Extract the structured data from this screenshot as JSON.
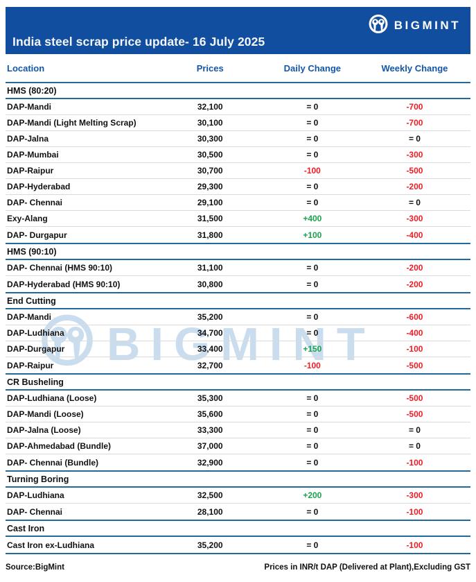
{
  "header": {
    "brand": "BIGMINT",
    "title": "India steel scrap price update- 16 July 2025"
  },
  "watermark": {
    "text": "BIGMINT"
  },
  "footer": {
    "source": "Source:BigMint",
    "note": "Prices in INR/t DAP (Delivered at Plant),Excluding GST"
  },
  "colors": {
    "banner_blue": "#114E9F",
    "header_text_blue": "#1456A8",
    "divider_blue": "#1F6A9B",
    "down_red": "#EE1C25",
    "up_green": "#1CA24D",
    "watermark_blue": "#9FC2E2"
  },
  "chart_data": {
    "type": "table",
    "title": "India steel scrap price update- 16 July 2025",
    "units_note": "Prices in INR/t DAP (Delivered at Plant),Excluding GST",
    "columns": [
      "Location",
      "Prices",
      "Daily Change",
      "Weekly Change"
    ],
    "sections": [
      {
        "name": "HMS (80:20)",
        "rows": [
          {
            "location": "DAP-Mandi",
            "price": "32,100",
            "daily": "= 0",
            "daily_dir": "flat",
            "weekly": "-700",
            "weekly_dir": "down"
          },
          {
            "location": "DAP-Mandi (Light Melting Scrap)",
            "price": "30,100",
            "daily": "= 0",
            "daily_dir": "flat",
            "weekly": "-700",
            "weekly_dir": "down"
          },
          {
            "location": "DAP-Jalna",
            "price": "30,300",
            "daily": "= 0",
            "daily_dir": "flat",
            "weekly": "= 0",
            "weekly_dir": "flat"
          },
          {
            "location": "DAP-Mumbai",
            "price": "30,500",
            "daily": "= 0",
            "daily_dir": "flat",
            "weekly": "-300",
            "weekly_dir": "down"
          },
          {
            "location": "DAP-Raipur",
            "price": "30,700",
            "daily": "-100",
            "daily_dir": "down",
            "weekly": "-500",
            "weekly_dir": "down"
          },
          {
            "location": "DAP-Hyderabad",
            "price": "29,300",
            "daily": "= 0",
            "daily_dir": "flat",
            "weekly": "-200",
            "weekly_dir": "down"
          },
          {
            "location": "DAP- Chennai",
            "price": "29,100",
            "daily": "= 0",
            "daily_dir": "flat",
            "weekly": "= 0",
            "weekly_dir": "flat"
          },
          {
            "location": "Exy-Alang",
            "price": "31,500",
            "daily": "+400",
            "daily_dir": "up",
            "weekly": "-300",
            "weekly_dir": "down"
          },
          {
            "location": "DAP- Durgapur",
            "price": "31,800",
            "daily": "+100",
            "daily_dir": "up",
            "weekly": "-400",
            "weekly_dir": "down"
          }
        ]
      },
      {
        "name": "HMS (90:10)",
        "rows": [
          {
            "location": "DAP- Chennai (HMS 90:10)",
            "price": "31,100",
            "daily": "= 0",
            "daily_dir": "flat",
            "weekly": "-200",
            "weekly_dir": "down"
          },
          {
            "location": "DAP-Hyderabad (HMS 90:10)",
            "price": "30,800",
            "daily": "= 0",
            "daily_dir": "flat",
            "weekly": "-200",
            "weekly_dir": "down"
          }
        ]
      },
      {
        "name": "End Cutting",
        "rows": [
          {
            "location": "DAP-Mandi",
            "price": "35,200",
            "daily": "= 0",
            "daily_dir": "flat",
            "weekly": "-600",
            "weekly_dir": "down"
          },
          {
            "location": "DAP-Ludhiana",
            "price": "34,700",
            "daily": "= 0",
            "daily_dir": "flat",
            "weekly": "-400",
            "weekly_dir": "down"
          },
          {
            "location": "DAP-Durgapur",
            "price": "33,400",
            "daily": "+150",
            "daily_dir": "up",
            "weekly": "-100",
            "weekly_dir": "down"
          },
          {
            "location": "DAP-Raipur",
            "price": "32,700",
            "daily": "-100",
            "daily_dir": "down",
            "weekly": "-500",
            "weekly_dir": "down"
          }
        ]
      },
      {
        "name": "CR Busheling",
        "rows": [
          {
            "location": "DAP-Ludhiana (Loose)",
            "price": "35,300",
            "daily": "= 0",
            "daily_dir": "flat",
            "weekly": "-500",
            "weekly_dir": "down"
          },
          {
            "location": "DAP-Mandi (Loose)",
            "price": "35,600",
            "daily": "= 0",
            "daily_dir": "flat",
            "weekly": "-500",
            "weekly_dir": "down"
          },
          {
            "location": "DAP-Jalna (Loose)",
            "price": "33,300",
            "daily": "= 0",
            "daily_dir": "flat",
            "weekly": "= 0",
            "weekly_dir": "flat"
          },
          {
            "location": "DAP-Ahmedabad (Bundle)",
            "price": "37,000",
            "daily": "= 0",
            "daily_dir": "flat",
            "weekly": "= 0",
            "weekly_dir": "flat"
          },
          {
            "location": "DAP- Chennai (Bundle)",
            "price": "32,900",
            "daily": "= 0",
            "daily_dir": "flat",
            "weekly": "-100",
            "weekly_dir": "down"
          }
        ]
      },
      {
        "name": "Turning Boring",
        "rows": [
          {
            "location": "DAP-Ludhiana",
            "price": "32,500",
            "daily": "+200",
            "daily_dir": "up",
            "weekly": "-300",
            "weekly_dir": "down"
          },
          {
            "location": "DAP- Chennai",
            "price": "28,100",
            "daily": "= 0",
            "daily_dir": "flat",
            "weekly": "-100",
            "weekly_dir": "down"
          }
        ]
      },
      {
        "name": "Cast Iron",
        "rows": [
          {
            "location": "Cast Iron ex-Ludhiana",
            "price": "35,200",
            "daily": "= 0",
            "daily_dir": "flat",
            "weekly": "-100",
            "weekly_dir": "down"
          }
        ]
      }
    ]
  }
}
